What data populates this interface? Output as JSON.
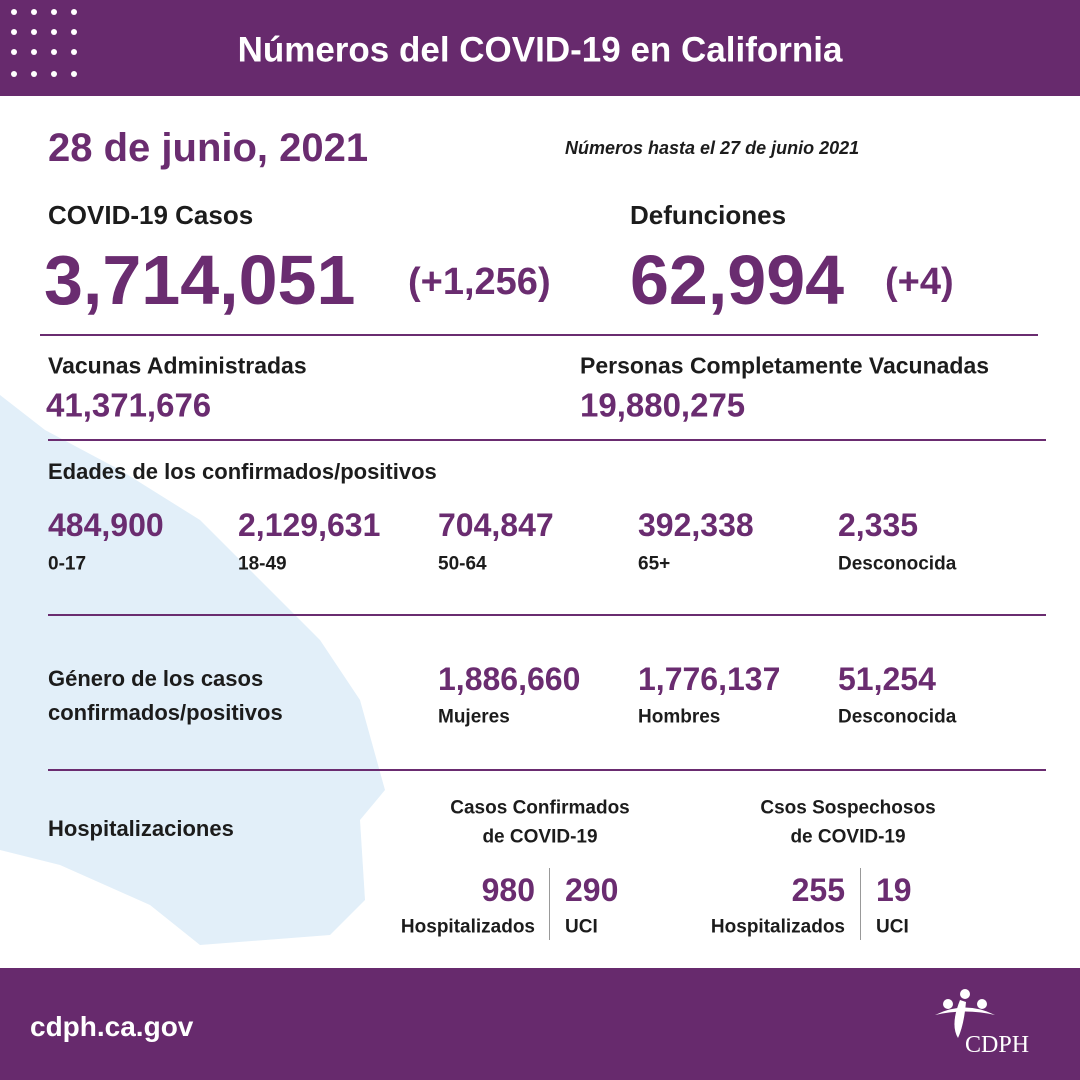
{
  "header": {
    "title": "Números del COVID-19 en California"
  },
  "date": "28 de junio, 2021",
  "note": "Números hasta el 27 de junio 2021",
  "cases": {
    "label": "COVID-19 Casos",
    "total": "3,714,051",
    "change": "(+1,256)"
  },
  "deaths": {
    "label": "Defunciones",
    "total": "62,994",
    "change": "(+4)"
  },
  "vaccines": {
    "label": "Vacunas Administradas",
    "value": "41,371,676"
  },
  "fully_vaccinated": {
    "label": "Personas Completamente Vacunadas",
    "value": "19,880,275"
  },
  "ages": {
    "title": "Edades de los confirmados/positivos",
    "groups": [
      {
        "value": "484,900",
        "label": "0-17"
      },
      {
        "value": "2,129,631",
        "label": "18-49"
      },
      {
        "value": "704,847",
        "label": "50-64"
      },
      {
        "value": "392,338",
        "label": "65+"
      },
      {
        "value": "2,335",
        "label": "Desconocida"
      }
    ]
  },
  "gender": {
    "title_lines": [
      "Género de los casos",
      "confirmados/positivos"
    ],
    "groups": [
      {
        "value": "1,886,660",
        "label": "Mujeres"
      },
      {
        "value": "1,776,137",
        "label": "Hombres"
      },
      {
        "value": "51,254",
        "label": "Desconocida"
      }
    ]
  },
  "hospitalizations": {
    "title": "Hospitalizaciones",
    "confirmed": {
      "title_lines": [
        "Casos Confirmados",
        "de COVID-19"
      ],
      "hospitalized": {
        "value": "980",
        "label": "Hospitalizados"
      },
      "icu": {
        "value": "290",
        "label": "UCI"
      }
    },
    "suspected": {
      "title_lines": [
        "Csos Sospechosos",
        "de COVID-19"
      ],
      "hospitalized": {
        "value": "255",
        "label": "Hospitalizados"
      },
      "icu": {
        "value": "19",
        "label": "UCI"
      }
    }
  },
  "footer": {
    "url": "cdph.ca.gov",
    "logo": "CDPH"
  }
}
